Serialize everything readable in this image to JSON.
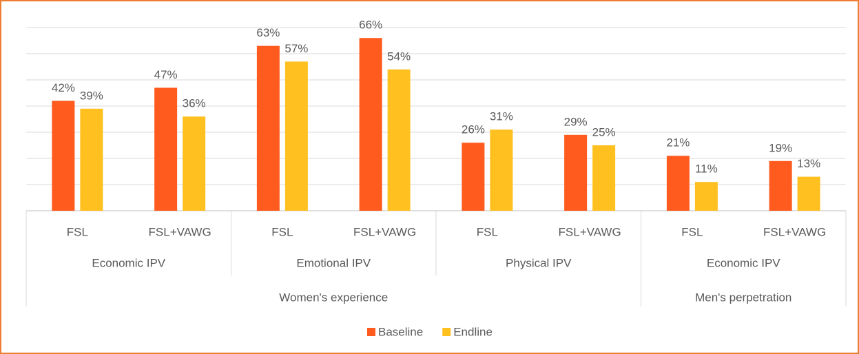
{
  "chart_data": {
    "type": "bar",
    "groups": [
      {
        "name": "Women's experience",
        "groups": [
          {
            "name": "Economic IPV",
            "categories": [
              "FSL",
              "FSL+VAWG"
            ]
          },
          {
            "name": "Emotional IPV",
            "categories": [
              "FSL",
              "FSL+VAWG"
            ]
          },
          {
            "name": "Physical IPV",
            "categories": [
              "FSL",
              "FSL+VAWG"
            ]
          }
        ]
      },
      {
        "name": "Men's perpetration",
        "groups": [
          {
            "name": "Economic IPV",
            "categories": [
              "FSL",
              "FSL+VAWG"
            ]
          }
        ]
      }
    ],
    "series": [
      {
        "name": "Baseline",
        "color": "#ff5b1f",
        "values": [
          42,
          47,
          63,
          66,
          26,
          29,
          21,
          19
        ],
        "value_labels": [
          "42%",
          "47%",
          "63%",
          "66%",
          "26%",
          "29%",
          "21%",
          "19%"
        ]
      },
      {
        "name": "Endline",
        "color": "#ffc020",
        "values": [
          39,
          36,
          57,
          54,
          31,
          25,
          11,
          13
        ],
        "value_labels": [
          "39%",
          "36%",
          "57%",
          "54%",
          "31%",
          "25%",
          "11%",
          "13%"
        ]
      }
    ],
    "ylim": [
      0,
      70
    ],
    "yticks": [
      0,
      10,
      20,
      30,
      40,
      50,
      60,
      70
    ],
    "grid": true,
    "legend": "bottom"
  }
}
